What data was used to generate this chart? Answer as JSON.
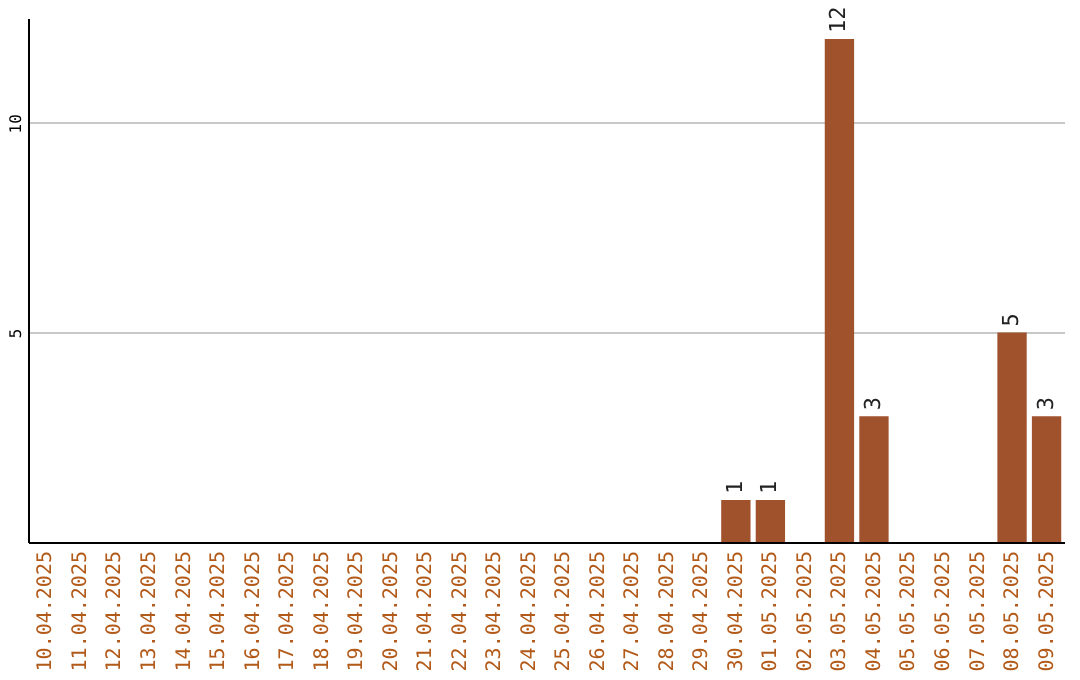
{
  "chart_data": {
    "type": "bar",
    "categories": [
      "10.04.2025",
      "11.04.2025",
      "12.04.2025",
      "13.04.2025",
      "14.04.2025",
      "15.04.2025",
      "16.04.2025",
      "17.04.2025",
      "18.04.2025",
      "19.04.2025",
      "20.04.2025",
      "21.04.2025",
      "22.04.2025",
      "23.04.2025",
      "24.04.2025",
      "25.04.2025",
      "26.04.2025",
      "27.04.2025",
      "28.04.2025",
      "29.04.2025",
      "30.04.2025",
      "01.05.2025",
      "02.05.2025",
      "03.05.2025",
      "04.05.2025",
      "05.05.2025",
      "06.05.2025",
      "07.05.2025",
      "08.05.2025",
      "09.05.2025"
    ],
    "values": [
      0,
      0,
      0,
      0,
      0,
      0,
      0,
      0,
      0,
      0,
      0,
      0,
      0,
      0,
      0,
      0,
      0,
      0,
      0,
      0,
      1,
      1,
      0,
      12,
      3,
      0,
      0,
      0,
      5,
      3
    ],
    "value_labels": [
      null,
      null,
      null,
      null,
      null,
      null,
      null,
      null,
      null,
      null,
      null,
      null,
      null,
      null,
      null,
      null,
      null,
      null,
      null,
      null,
      "1",
      "1",
      null,
      "12",
      "3",
      null,
      null,
      null,
      "5",
      "3"
    ],
    "color": "#a0522d",
    "ylim": [
      0,
      12.5
    ],
    "yticks": [
      5,
      10
    ],
    "grid": "y"
  }
}
